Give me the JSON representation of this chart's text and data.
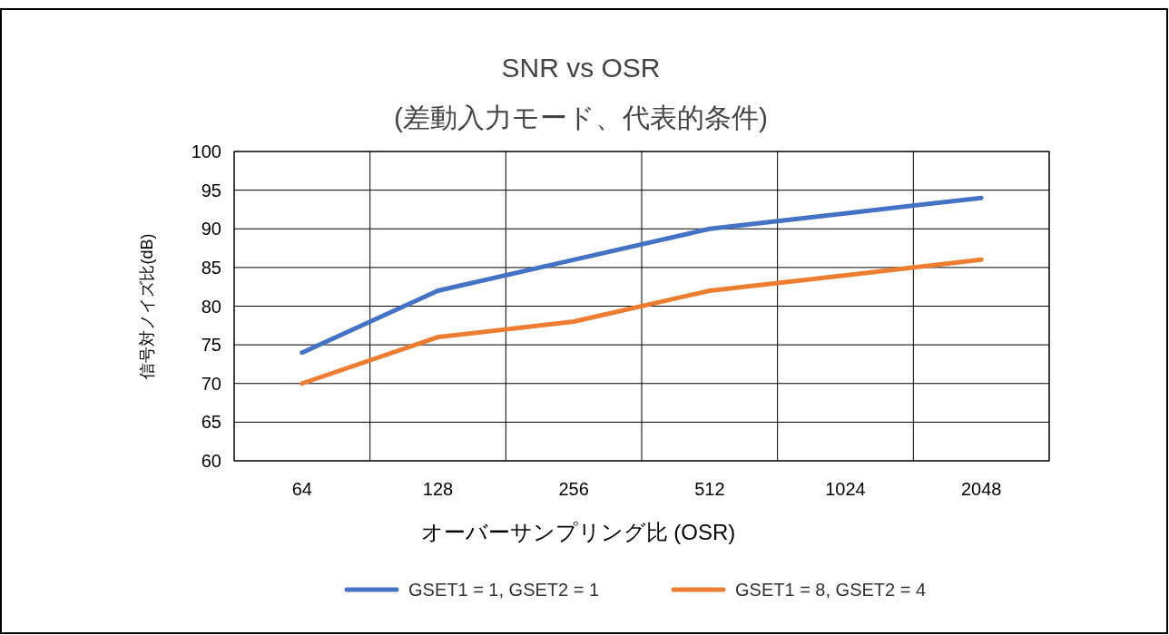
{
  "chart_data": {
    "type": "line",
    "title": "SNR vs OSR",
    "subtitle": "(差動入力モード、代表的条件)",
    "xlabel": "オーバーサンプリング比 (OSR)",
    "ylabel": "信号対ノイズ比(dB)",
    "categories": [
      "64",
      "128",
      "256",
      "512",
      "1024",
      "2048"
    ],
    "series": [
      {
        "name": "GSET1 = 1, GSET2 = 1",
        "color": "#4472c4",
        "values": [
          74,
          82,
          86,
          90,
          92,
          94
        ]
      },
      {
        "name": "GSET1 = 8, GSET2 = 4",
        "color": "#ed7d31",
        "values": [
          70,
          76,
          78,
          82,
          84,
          86
        ]
      }
    ],
    "ylim": [
      60,
      100
    ],
    "yticks": [
      60,
      65,
      70,
      75,
      80,
      85,
      90,
      95,
      100
    ],
    "grid": true,
    "legend": "bottom",
    "marker": "none",
    "line_style": "solid"
  }
}
